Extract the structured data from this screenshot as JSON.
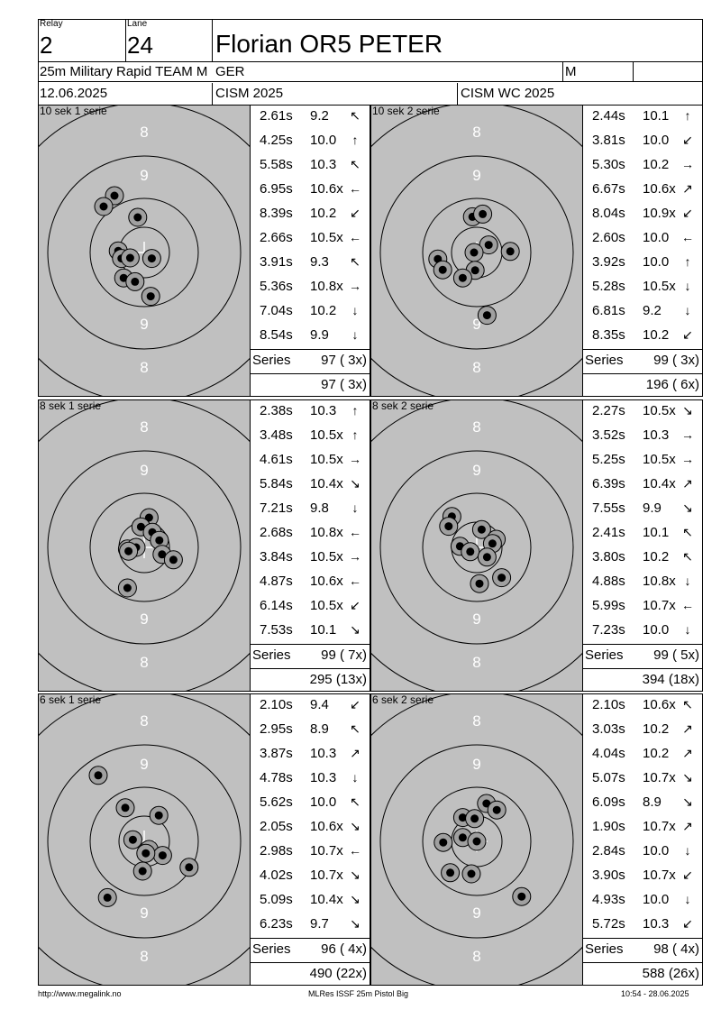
{
  "header": {
    "relay_label": "Relay",
    "relay": "2",
    "lane_label": "Lane",
    "lane": "24",
    "shooter": "Florian OR5 PETER",
    "event": "25m Military Rapid TEAM M",
    "nation": "GER",
    "gender": "M",
    "date": "12.06.2025",
    "competition": "CISM 2025",
    "competition2": "CISM WC 2025"
  },
  "series_label": "Series",
  "panels": [
    {
      "title": "10 sek 1 serie",
      "shots": [
        {
          "time": "2.61s",
          "score": "9.2",
          "arrow": "↖"
        },
        {
          "time": "4.25s",
          "score": "10.0",
          "arrow": "↑"
        },
        {
          "time": "5.58s",
          "score": "10.3",
          "arrow": "↖"
        },
        {
          "time": "6.95s",
          "score": "10.6x",
          "arrow": "←"
        },
        {
          "time": "8.39s",
          "score": "10.2",
          "arrow": "↙"
        },
        {
          "time": "2.66s",
          "score": "10.5x",
          "arrow": "←"
        },
        {
          "time": "3.91s",
          "score": "9.3",
          "arrow": "↖"
        },
        {
          "time": "5.36s",
          "score": "10.8x",
          "arrow": "→"
        },
        {
          "time": "7.04s",
          "score": "10.2",
          "arrow": "↓"
        },
        {
          "time": "8.54s",
          "score": "9.9",
          "arrow": "↓"
        }
      ],
      "series": "97 ( 3x)",
      "total": "97 ( 3x)",
      "holes": [
        [
          -0.55,
          -1.05
        ],
        [
          -0.75,
          -0.85
        ],
        [
          -0.12,
          -0.65
        ],
        [
          -0.48,
          -0.03
        ],
        [
          -0.42,
          0.11
        ],
        [
          -0.26,
          0.1
        ],
        [
          0.14,
          0.11
        ],
        [
          -0.38,
          0.47
        ],
        [
          -0.17,
          0.54
        ],
        [
          0.12,
          0.81
        ]
      ],
      "center": [
        0.0,
        0.0
      ]
    },
    {
      "title": "10 sek 2 serie",
      "shots": [
        {
          "time": "2.44s",
          "score": "10.1",
          "arrow": "↑"
        },
        {
          "time": "3.81s",
          "score": "10.0",
          "arrow": "↙"
        },
        {
          "time": "5.30s",
          "score": "10.2",
          "arrow": "→"
        },
        {
          "time": "6.67s",
          "score": "10.6x",
          "arrow": "↗"
        },
        {
          "time": "8.04s",
          "score": "10.9x",
          "arrow": "↙"
        },
        {
          "time": "2.60s",
          "score": "10.0",
          "arrow": "←"
        },
        {
          "time": "3.92s",
          "score": "10.0",
          "arrow": "↑"
        },
        {
          "time": "5.28s",
          "score": "10.5x",
          "arrow": "↓"
        },
        {
          "time": "6.81s",
          "score": "9.2",
          "arrow": "↓"
        },
        {
          "time": "8.35s",
          "score": "10.2",
          "arrow": "↙"
        }
      ],
      "series": "99 ( 3x)",
      "total": "196 ( 6x)",
      "holes": [
        [
          -0.08,
          -0.66
        ],
        [
          0.11,
          -0.71
        ],
        [
          0.22,
          -0.14
        ],
        [
          0.62,
          -0.02
        ],
        [
          -0.05,
          0.0
        ],
        [
          -0.72,
          0.12
        ],
        [
          -0.63,
          0.32
        ],
        [
          -0.03,
          0.33
        ],
        [
          -0.26,
          0.47
        ],
        [
          0.19,
          1.16
        ]
      ],
      "center": [
        0.0,
        0.0
      ]
    },
    {
      "title": "8 sek 1 serie",
      "shots": [
        {
          "time": "2.38s",
          "score": "10.3",
          "arrow": "↑"
        },
        {
          "time": "3.48s",
          "score": "10.5x",
          "arrow": "↑"
        },
        {
          "time": "4.61s",
          "score": "10.5x",
          "arrow": "→"
        },
        {
          "time": "5.84s",
          "score": "10.4x",
          "arrow": "↘"
        },
        {
          "time": "7.21s",
          "score": "9.8",
          "arrow": "↓"
        },
        {
          "time": "2.68s",
          "score": "10.8x",
          "arrow": "←"
        },
        {
          "time": "3.84s",
          "score": "10.5x",
          "arrow": "→"
        },
        {
          "time": "4.87s",
          "score": "10.6x",
          "arrow": "←"
        },
        {
          "time": "6.14s",
          "score": "10.5x",
          "arrow": "↙"
        },
        {
          "time": "7.53s",
          "score": "10.1",
          "arrow": "↘"
        }
      ],
      "series": "99 ( 7x)",
      "total": "295 (13x)",
      "holes": [
        [
          0.09,
          -0.55
        ],
        [
          -0.06,
          -0.38
        ],
        [
          0.15,
          -0.28
        ],
        [
          0.28,
          -0.13
        ],
        [
          -0.31,
          0.03
        ],
        [
          -0.15,
          0.0
        ],
        [
          -0.29,
          0.07
        ],
        [
          0.33,
          0.13
        ],
        [
          0.54,
          0.23
        ],
        [
          -0.31,
          0.75
        ]
      ],
      "center": [
        0.0,
        0.0
      ]
    },
    {
      "title": "8 sek 2 serie",
      "shots": [
        {
          "time": "2.27s",
          "score": "10.5x",
          "arrow": "↘"
        },
        {
          "time": "3.52s",
          "score": "10.3",
          "arrow": "→"
        },
        {
          "time": "5.25s",
          "score": "10.5x",
          "arrow": "→"
        },
        {
          "time": "6.39s",
          "score": "10.4x",
          "arrow": "↗"
        },
        {
          "time": "7.55s",
          "score": "9.9",
          "arrow": "↘"
        },
        {
          "time": "2.41s",
          "score": "10.1",
          "arrow": "↖"
        },
        {
          "time": "3.80s",
          "score": "10.2",
          "arrow": "↖"
        },
        {
          "time": "4.88s",
          "score": "10.8x",
          "arrow": "↓"
        },
        {
          "time": "5.99s",
          "score": "10.7x",
          "arrow": "←"
        },
        {
          "time": "7.23s",
          "score": "10.0",
          "arrow": "↓"
        }
      ],
      "series": "99 ( 5x)",
      "total": "394 (18x)",
      "holes": [
        [
          -0.46,
          -0.57
        ],
        [
          -0.52,
          -0.39
        ],
        [
          0.09,
          -0.33
        ],
        [
          0.36,
          -0.15
        ],
        [
          0.29,
          -0.07
        ],
        [
          -0.31,
          -0.02
        ],
        [
          -0.12,
          0.08
        ],
        [
          0.19,
          0.18
        ],
        [
          0.05,
          0.67
        ],
        [
          0.46,
          0.56
        ]
      ],
      "center": [
        0.0,
        0.0
      ]
    },
    {
      "title": "6 sek 1 serie",
      "shots": [
        {
          "time": "2.10s",
          "score": "9.4",
          "arrow": "↙"
        },
        {
          "time": "2.95s",
          "score": "8.9",
          "arrow": "↖"
        },
        {
          "time": "3.87s",
          "score": "10.3",
          "arrow": "↗"
        },
        {
          "time": "4.78s",
          "score": "10.3",
          "arrow": "↓"
        },
        {
          "time": "5.62s",
          "score": "10.0",
          "arrow": "↖"
        },
        {
          "time": "2.05s",
          "score": "10.6x",
          "arrow": "↘"
        },
        {
          "time": "2.98s",
          "score": "10.7x",
          "arrow": "←"
        },
        {
          "time": "4.02s",
          "score": "10.7x",
          "arrow": "↘"
        },
        {
          "time": "5.09s",
          "score": "10.4x",
          "arrow": "↘"
        },
        {
          "time": "6.23s",
          "score": "9.7",
          "arrow": "↘"
        }
      ],
      "series": "96 ( 4x)",
      "total": "490 (22x)",
      "holes": [
        [
          -0.85,
          -1.22
        ],
        [
          -0.35,
          -0.62
        ],
        [
          0.27,
          -0.48
        ],
        [
          -0.21,
          -0.03
        ],
        [
          0.09,
          0.15
        ],
        [
          0.34,
          0.26
        ],
        [
          0.03,
          0.22
        ],
        [
          -0.03,
          0.55
        ],
        [
          0.83,
          0.48
        ],
        [
          -0.68,
          1.04
        ]
      ],
      "center": [
        0.0,
        0.0
      ]
    },
    {
      "title": "6 sek 2 serie",
      "shots": [
        {
          "time": "2.10s",
          "score": "10.6x",
          "arrow": "↖"
        },
        {
          "time": "3.03s",
          "score": "10.2",
          "arrow": "↗"
        },
        {
          "time": "4.04s",
          "score": "10.2",
          "arrow": "↗"
        },
        {
          "time": "5.07s",
          "score": "10.7x",
          "arrow": "↘"
        },
        {
          "time": "6.09s",
          "score": "8.9",
          "arrow": "↘"
        },
        {
          "time": "1.90s",
          "score": "10.7x",
          "arrow": "↗"
        },
        {
          "time": "2.84s",
          "score": "10.0",
          "arrow": "↓"
        },
        {
          "time": "3.90s",
          "score": "10.7x",
          "arrow": "↙"
        },
        {
          "time": "4.93s",
          "score": "10.0",
          "arrow": "↓"
        },
        {
          "time": "5.72s",
          "score": "10.3",
          "arrow": "↙"
        }
      ],
      "series": "98 ( 4x)",
      "total": "588 (26x)",
      "holes": [
        [
          0.18,
          -0.7
        ],
        [
          0.37,
          -0.58
        ],
        [
          -0.26,
          -0.44
        ],
        [
          -0.04,
          -0.42
        ],
        [
          -0.26,
          -0.07
        ],
        [
          0.0,
          0.0
        ],
        [
          -0.62,
          0.02
        ],
        [
          -0.49,
          0.58
        ],
        [
          -0.1,
          0.6
        ],
        [
          0.83,
          1.02
        ]
      ],
      "center": [
        0.0,
        0.0
      ]
    }
  ],
  "target_ring_labels": {
    "outer": "8",
    "inner": "9"
  },
  "footer": {
    "left": "http://www.megalink.no",
    "center": "MLRes ISSF 25m Pistol Big",
    "right": "10:54 - 28.06.2025"
  },
  "colors": {
    "target_bg": "#c0c0c0",
    "hole_fill": "#a0a0a0",
    "ring": "#000000"
  }
}
